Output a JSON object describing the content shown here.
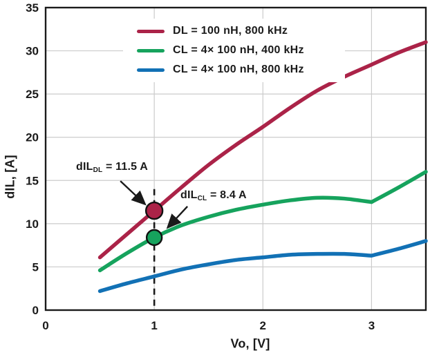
{
  "chart_data": {
    "type": "line",
    "title": "",
    "xlabel": "Vo, [V]",
    "ylabel": "dIL, [A]",
    "xlim": [
      0,
      3.5
    ],
    "ylim": [
      0,
      35
    ],
    "xticks": [
      0,
      1,
      2,
      3
    ],
    "yticks": [
      0,
      5,
      10,
      15,
      20,
      25,
      30,
      35
    ],
    "grid": true,
    "grid_color": "#cbcbcb",
    "axis_color": "#1a1a1a",
    "legend_position": "top-left-inside",
    "series": [
      {
        "name": "DL = 100 nH, 800 kHz",
        "color": "#ab2348",
        "x": [
          0.5,
          0.75,
          1,
          1.25,
          1.5,
          1.75,
          2,
          2.25,
          2.5,
          2.75,
          3,
          3.25,
          3.5
        ],
        "y": [
          6.1,
          8.8,
          11.5,
          14.2,
          16.8,
          19.1,
          21.2,
          23.4,
          25.4,
          27.0,
          28.4,
          29.8,
          31.0
        ]
      },
      {
        "name": "CL = 4× 100 nH, 400 kHz",
        "color": "#16a35d",
        "kink_at": 3,
        "x": [
          0.5,
          0.75,
          1,
          1.25,
          1.5,
          1.75,
          2,
          2.25,
          2.5,
          2.75,
          3,
          3.25,
          3.5
        ],
        "y": [
          4.6,
          6.6,
          8.4,
          9.8,
          10.8,
          11.6,
          12.2,
          12.7,
          13.0,
          12.9,
          12.5,
          14.2,
          16.0
        ]
      },
      {
        "name": "CL = 4× 100 nH, 800 kHz",
        "color": "#1271b5",
        "kink_at": 3,
        "x": [
          0.5,
          0.75,
          1,
          1.25,
          1.5,
          1.75,
          2,
          2.25,
          2.5,
          2.75,
          3,
          3.25,
          3.5
        ],
        "y": [
          2.2,
          3.1,
          3.9,
          4.7,
          5.3,
          5.8,
          6.1,
          6.4,
          6.5,
          6.5,
          6.3,
          7.1,
          8.0
        ]
      }
    ],
    "dashed_vline": {
      "x": 1,
      "y_top": 14
    },
    "annotations": [
      {
        "prefix": "dIL",
        "sub": "DL",
        "rest": " = 11.5 A",
        "x": 1,
        "y": 11.5,
        "dot_color": "#ab2348",
        "dot_radius": 12
      },
      {
        "prefix": "dIL",
        "sub": "CL",
        "rest": " = 8.4 A",
        "x": 1,
        "y": 8.4,
        "dot_color": "#16a35d",
        "dot_radius": 11
      }
    ]
  }
}
